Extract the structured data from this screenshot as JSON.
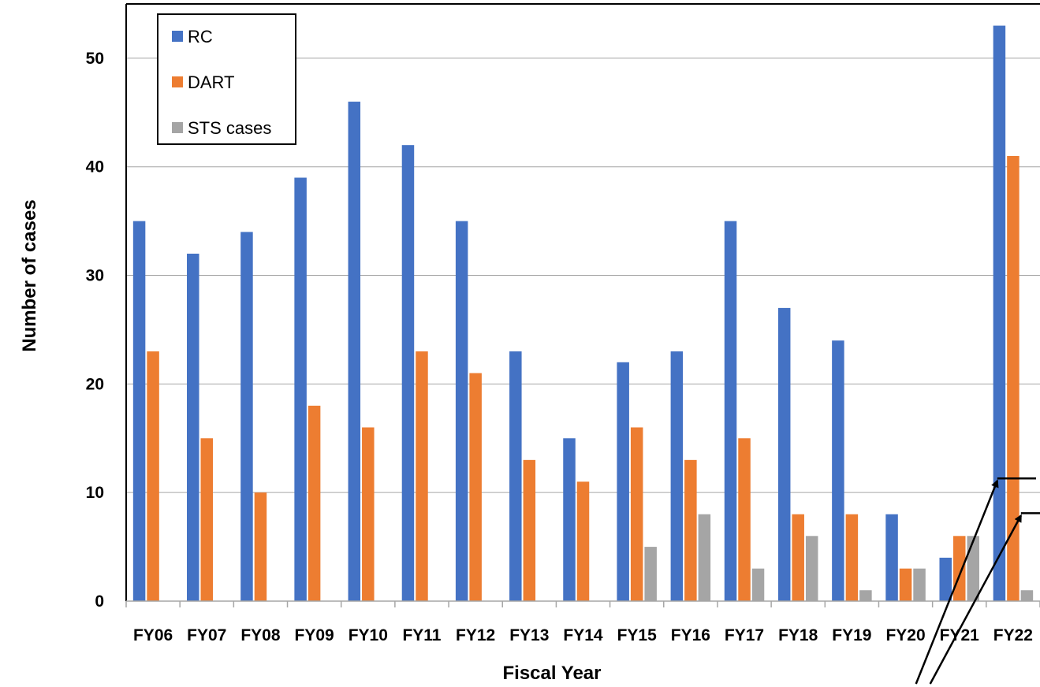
{
  "chart_data": {
    "type": "bar",
    "title": "",
    "xlabel": "Fiscal Year",
    "ylabel": "Number of cases",
    "ylim": [
      0,
      55
    ],
    "yticks": [
      0,
      10,
      20,
      30,
      40,
      50
    ],
    "grid": true,
    "legend_position": "top-left",
    "categories": [
      "FY06",
      "FY07",
      "FY08",
      "FY09",
      "FY10",
      "FY11",
      "FY12",
      "FY13",
      "FY14",
      "FY15",
      "FY16",
      "FY17",
      "FY18",
      "FY19",
      "FY20",
      "FY21",
      "FY22"
    ],
    "series": [
      {
        "name": "RC",
        "color": "#4472C4",
        "values": [
          35,
          32,
          34,
          39,
          46,
          42,
          35,
          23,
          15,
          22,
          23,
          35,
          27,
          24,
          8,
          4,
          53
        ]
      },
      {
        "name": "DART",
        "color": "#ED7D31",
        "values": [
          23,
          15,
          10,
          18,
          16,
          23,
          21,
          13,
          11,
          16,
          13,
          15,
          8,
          8,
          3,
          6,
          41
        ]
      },
      {
        "name": "STS cases",
        "color": "#A5A5A5",
        "values": [
          0,
          0,
          0,
          0,
          0,
          0,
          0,
          0,
          0,
          5,
          8,
          3,
          6,
          1,
          3,
          6,
          1
        ]
      }
    ],
    "annotations": [
      {
        "type": "arrow",
        "from_category": "FY21",
        "to_category": "FY22",
        "value": 11.3
      },
      {
        "type": "arrow",
        "from_category": "FY21",
        "to_category": "FY22",
        "value": 8.1
      }
    ]
  }
}
